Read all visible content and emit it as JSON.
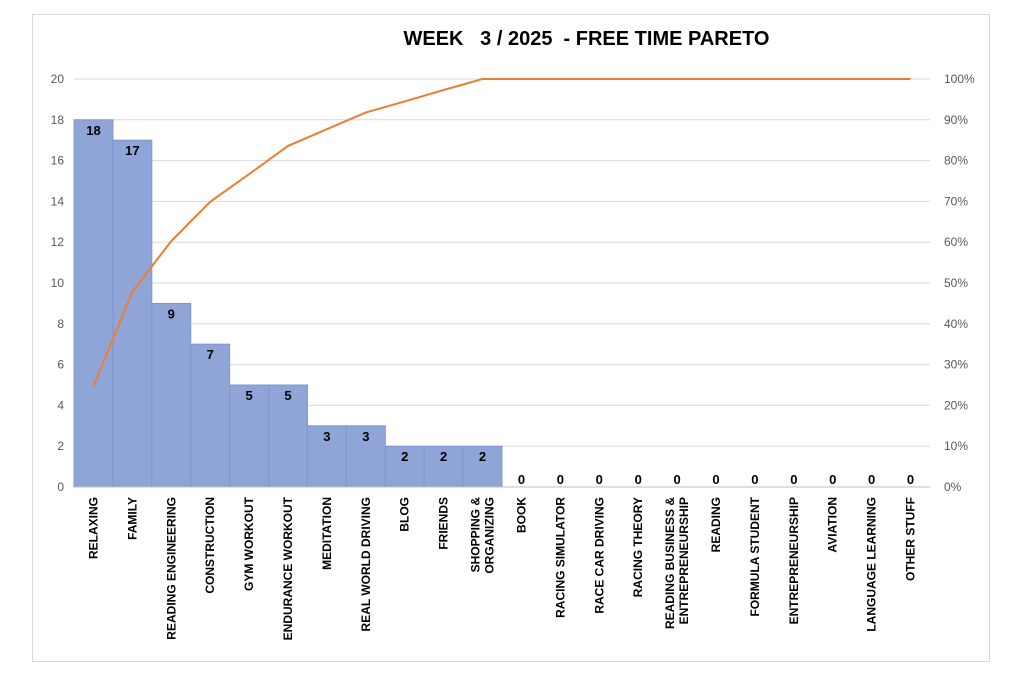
{
  "chart_data": {
    "type": "bar",
    "title": "WEEK   3 / 2025  - FREE TIME PARETO",
    "categories": [
      "RELAXING",
      "FAMILY",
      "READING ENGINEERING",
      "CONSTRUCTION",
      "GYM WORKOUT",
      "ENDURANCE WORKOUT",
      "MEDITATION",
      "REAL WORLD DRIVING",
      "BLOG",
      "FRIENDS",
      "SHOPPING &\nORGANIZING",
      "BOOK",
      "RACING SIMULATOR",
      "RACE CAR DRIVING",
      "RACING THEORY",
      "READING BUSINESS &\nENTREPRENEURSHIP",
      "READING",
      "FORMULA STUDENT",
      "ENTREPRENEURSHIP",
      "AVIATION",
      "LANGUAGE LEARNING",
      "OTHER STUFF"
    ],
    "series": [
      {
        "type": "bar",
        "values": [
          18,
          17,
          9,
          7,
          5,
          5,
          3,
          3,
          2,
          2,
          2,
          0,
          0,
          0,
          0,
          0,
          0,
          0,
          0,
          0,
          0,
          0
        ]
      },
      {
        "type": "line",
        "axis": "secondary",
        "values": [
          24.7,
          47.9,
          60.3,
          69.9,
          76.7,
          83.6,
          87.7,
          91.8,
          94.5,
          97.3,
          100,
          100,
          100,
          100,
          100,
          100,
          100,
          100,
          100,
          100,
          100,
          100
        ]
      }
    ],
    "ylim": [
      0,
      20
    ],
    "y2lim": [
      0,
      100
    ],
    "yticks": [
      "0",
      "2",
      "4",
      "6",
      "8",
      "10",
      "12",
      "14",
      "16",
      "18",
      "20"
    ],
    "y2ticks": [
      "0%",
      "10%",
      "20%",
      "30%",
      "40%",
      "50%",
      "60%",
      "70%",
      "80%",
      "90%",
      "100%"
    ],
    "grid": true,
    "colors": {
      "bar": "#8fa5d8",
      "bar_edge": "#7f97cf",
      "line": "#ed7d31",
      "grid": "#d9d9d9"
    }
  }
}
